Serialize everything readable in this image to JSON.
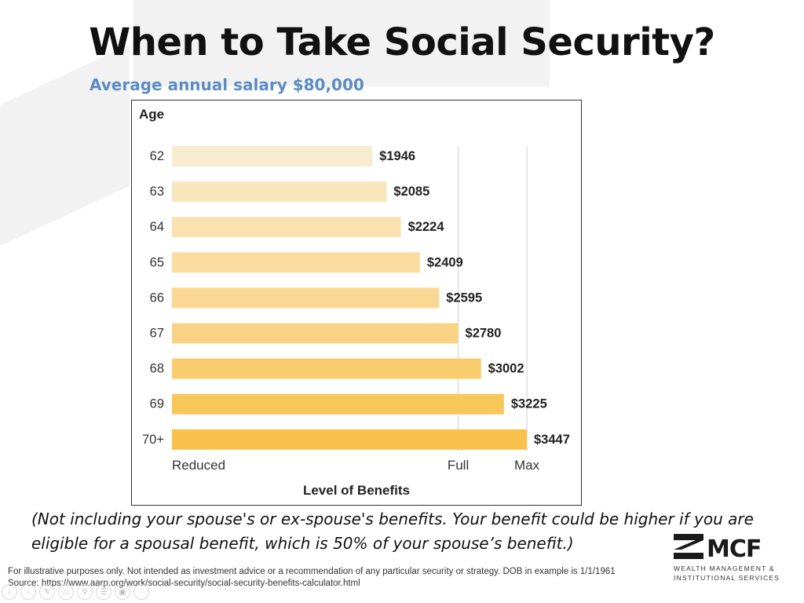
{
  "slide": {
    "title": "When to Take Social Security?",
    "subtitle": "Average annual salary $80,000",
    "note_line1": "(Not including your spouse's or ex-spouse's benefits. Your benefit could be higher if you are",
    "note_line2": "eligible for a spousal benefit, which is 50% of your spouse’s benefit.)",
    "disclaimer_line1": "For illustrative purposes only. Not intended as investment advice or a recommendation of any particular security or strategy. DOB in example is 1/1/1961",
    "disclaimer_line2": "Source: https://www.aarp.org/work/social-security/social-security-benefits-calculator.html"
  },
  "logo": {
    "name": "MCF",
    "line1": "WEALTH MANAGEMENT &",
    "line2": "INSTITUTIONAL SERVICES"
  },
  "toolbar": {
    "icons": [
      "back-icon",
      "forward-icon",
      "pen-icon",
      "copy-icon",
      "zoom-icon",
      "notes-icon",
      "screen-icon",
      "more-icon"
    ]
  },
  "chart_data": {
    "type": "bar",
    "orientation": "horizontal",
    "ylabel": "Age",
    "xlabel": "Level of Benefits",
    "categories": [
      "62",
      "63",
      "64",
      "65",
      "66",
      "67",
      "68",
      "69",
      "70+"
    ],
    "values": [
      1946,
      2085,
      2224,
      2409,
      2595,
      2780,
      3002,
      3225,
      3447
    ],
    "value_labels": [
      "$1946",
      "$2085",
      "$2224",
      "$2409",
      "$2595",
      "$2780",
      "$3002",
      "$3225",
      "$3447"
    ],
    "xlim": [
      0,
      3447
    ],
    "x_reference_ticks": [
      {
        "label": "Reduced",
        "value": 0
      },
      {
        "label": "Full",
        "value": 2780
      },
      {
        "label": "Max",
        "value": 3447
      }
    ],
    "colors": [
      "#f8ecd0",
      "#f9e6bd",
      "#f9e2b0",
      "#fadca0",
      "#fad792",
      "#f9d283",
      "#f9cd6e",
      "#f8c75a",
      "#f8c24c"
    ],
    "grid": true
  }
}
